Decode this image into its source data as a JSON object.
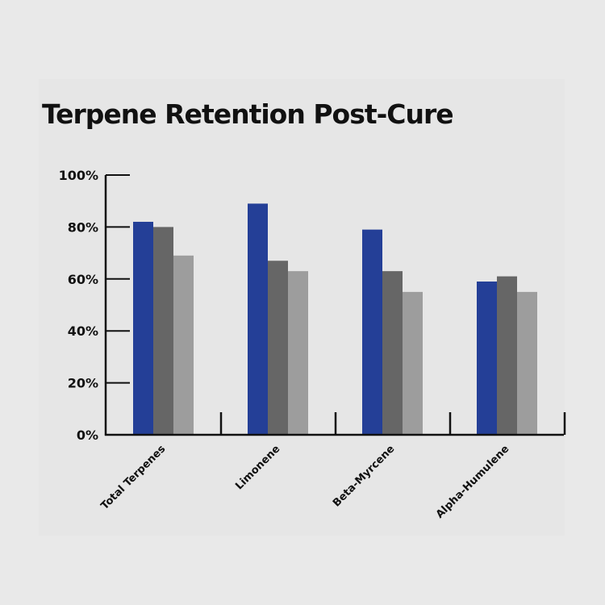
{
  "chart_data": {
    "type": "bar",
    "title": "Terpene Retention Post-Cure",
    "xlabel": "",
    "ylabel": "",
    "categories": [
      "Total Terpenes",
      "Limonene",
      "Beta-Myrcene",
      "Alpha-Humulene"
    ],
    "series": [
      {
        "values": [
          82,
          89,
          79,
          59
        ],
        "color": "#243f97"
      },
      {
        "values": [
          80,
          67,
          63,
          61
        ],
        "color": "#666666"
      },
      {
        "values": [
          69,
          63,
          55,
          55
        ],
        "color": "#9d9d9d"
      }
    ],
    "ylim": [
      0,
      100
    ],
    "yticks": [
      0,
      20,
      40,
      60,
      80,
      100
    ],
    "ytick_labels": [
      "0%",
      "20%",
      "40%",
      "60%",
      "80%",
      "100%"
    ],
    "grid": false,
    "legend": "none"
  }
}
